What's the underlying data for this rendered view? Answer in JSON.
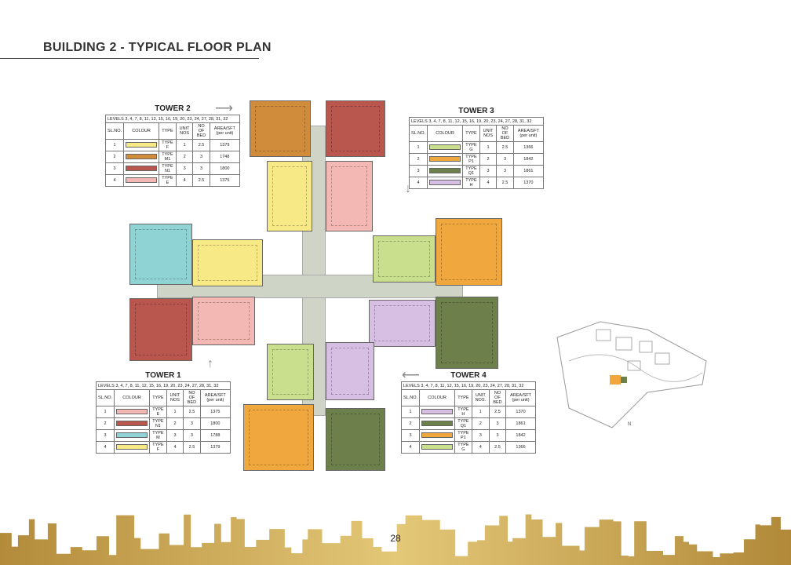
{
  "page": {
    "title": "BUILDING 2 - TYPICAL FLOOR PLAN",
    "page_number": "28"
  },
  "headers": {
    "sl": "SL.NO.",
    "colour": "COLOUR",
    "type": "TYPE",
    "units": "UNIT NOS",
    "units_t4": "UNIT NOS.",
    "bed": "NO OF BED",
    "area": "AREA/SFT (per unit)"
  },
  "levels": "LEVELS 3, 4, 7, 8, 11, 12, 15, 16, 19, 20, 23, 24, 27, 28, 31, 32",
  "colors": {
    "type_e": "#f3b8b4",
    "type_n1": "#b9574f",
    "type_m": "#8fd3d4",
    "type_f": "#f7ea86",
    "type_m1": "#d08c3a",
    "type_g": "#c9df8e",
    "type_p1": "#f0a73e",
    "type_q1": "#6d7f4a",
    "type_h": "#d7bfe3"
  },
  "towers": [
    {
      "name": "TOWER 2",
      "rows": [
        [
          "1",
          "TYPE F",
          "1",
          "2.5",
          "1379"
        ],
        [
          "2",
          "TYPE M1",
          "2",
          "3",
          "1748"
        ],
        [
          "3",
          "TYPE N1",
          "3",
          "3",
          "1800"
        ],
        [
          "4",
          "TYPE E",
          "4",
          "2.5",
          "1375"
        ]
      ],
      "swatches": [
        "#f7ea86",
        "#d08c3a",
        "#b9574f",
        "#f3b8b4"
      ]
    },
    {
      "name": "TOWER 3",
      "rows": [
        [
          "1",
          "TYPE G",
          "1",
          "2.5",
          "1366"
        ],
        [
          "2",
          "TYPE P1",
          "2",
          "3",
          "1842"
        ],
        [
          "3",
          "TYPE Q1",
          "3",
          "3",
          "1861"
        ],
        [
          "4",
          "TYPE H",
          "4",
          "2.5",
          "1370"
        ]
      ],
      "swatches": [
        "#c9df8e",
        "#f0a73e",
        "#6d7f4a",
        "#d7bfe3"
      ]
    },
    {
      "name": "TOWER 1",
      "rows": [
        [
          "1",
          "TYPE E",
          "1",
          "2.5",
          "1375"
        ],
        [
          "2",
          "TYPE N1",
          "2",
          "3",
          "1800"
        ],
        [
          "3",
          "TYPE M",
          "3",
          "3",
          "1788"
        ],
        [
          "4",
          "TYPE F",
          "4",
          "2.5",
          "1379"
        ]
      ],
      "swatches": [
        "#f3b8b4",
        "#b9574f",
        "#8fd3d4",
        "#f7ea86"
      ]
    },
    {
      "name": "TOWER 4",
      "rows": [
        [
          "1",
          "TYPE H",
          "1",
          "2.5",
          "1370"
        ],
        [
          "2",
          "TYPE Q1",
          "2",
          "3",
          "1861"
        ],
        [
          "3",
          "TYPE P1",
          "3",
          "3",
          "1842"
        ],
        [
          "4",
          "TYPE G",
          "4",
          "2.5",
          "1366"
        ]
      ],
      "swatches": [
        "#d7bfe3",
        "#6d7f4a",
        "#f0a73e",
        "#c9df8e"
      ]
    }
  ],
  "accent_gold": "#c9a64a"
}
